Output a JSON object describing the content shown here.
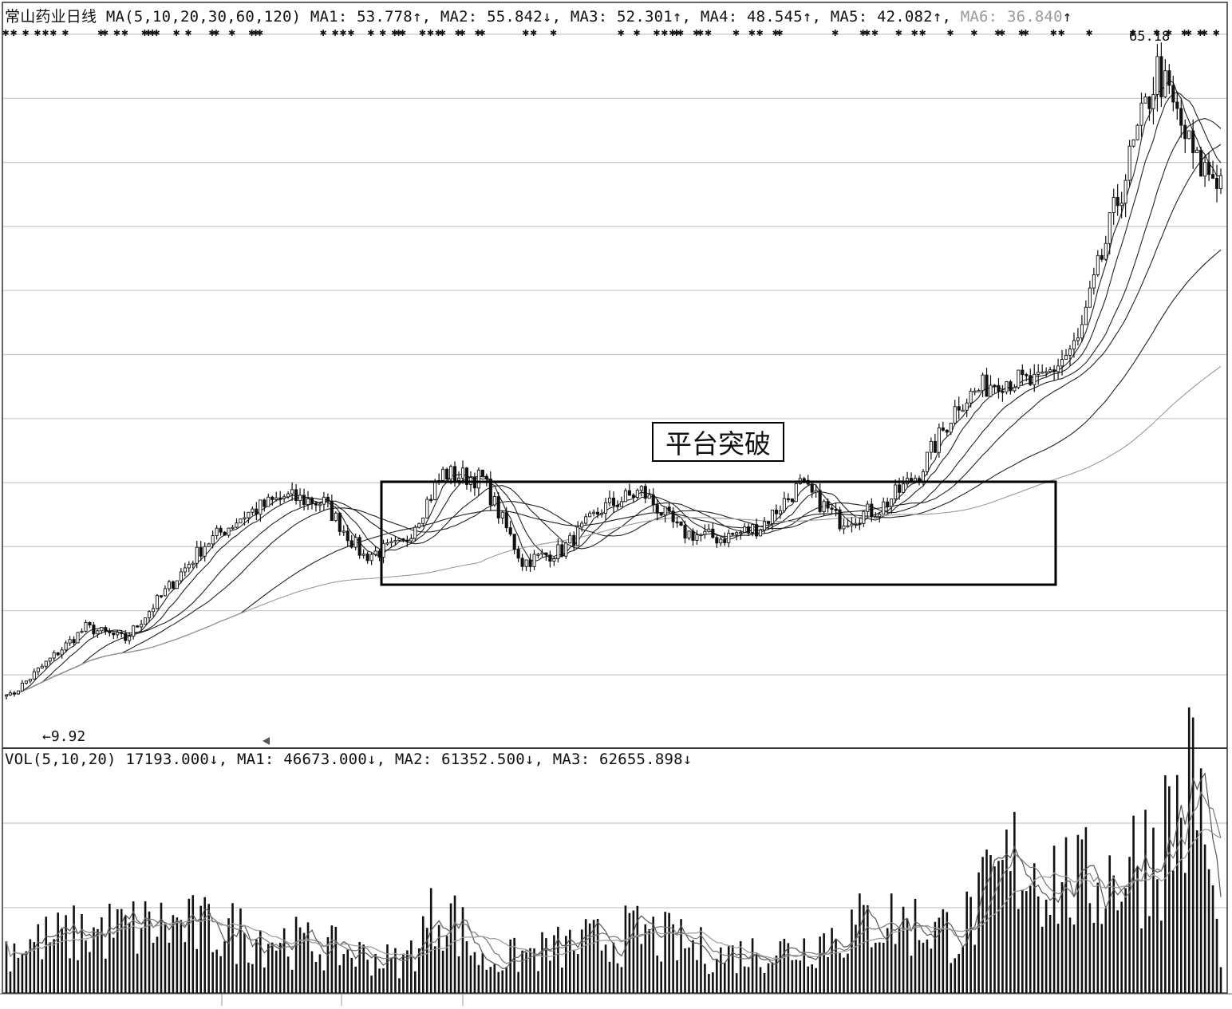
{
  "price_panel": {
    "stock_title": "常山药业日线",
    "ma_label": "MA(5,10,20,30,60,120)",
    "ma_values": [
      {
        "label": "MA1:",
        "value": "53.778",
        "arrow": "↑"
      },
      {
        "label": "MA2:",
        "value": "55.842",
        "arrow": "↓"
      },
      {
        "label": "MA3:",
        "value": "52.301",
        "arrow": "↑"
      },
      {
        "label": "MA4:",
        "value": "48.545",
        "arrow": "↑"
      },
      {
        "label": "MA5:",
        "value": "42.082",
        "arrow": "↑"
      },
      {
        "label": "MA6:",
        "value": "36.840",
        "arrow": "↑"
      }
    ],
    "low_label": "←9.92",
    "high_label": "65.18",
    "annotation": "平台突破"
  },
  "volume_panel": {
    "label": "VOL(5,10,20)",
    "current": "17193.000",
    "current_arrow": "↓",
    "ma_values": [
      {
        "label": "MA1:",
        "value": "46673.000",
        "arrow": "↓"
      },
      {
        "label": "MA2:",
        "value": "61352.500",
        "arrow": "↓"
      },
      {
        "label": "MA3:",
        "value": "62655.898",
        "arrow": "↓"
      }
    ]
  },
  "colors": {
    "candle": "#111111",
    "grid": "#c8c8c8",
    "ma_dark": "#222222",
    "ma_light": "#9a9a9a"
  },
  "chart_data": [
    {
      "type": "line",
      "name": "常山药业日线",
      "x_unit": "trading day index",
      "x": [
        0,
        10,
        20,
        30,
        40,
        50,
        60,
        70,
        80,
        90,
        100,
        110,
        120,
        130,
        140,
        150,
        160,
        170,
        180,
        190,
        200,
        210,
        220,
        230,
        240,
        250,
        260,
        270,
        280,
        290,
        300,
        306
      ],
      "close_approx": [
        9.9,
        13.0,
        16.0,
        15.0,
        19.0,
        23.0,
        25.5,
        27.0,
        26.5,
        22.0,
        23.0,
        29.0,
        28.5,
        21.5,
        22.5,
        26.0,
        27.5,
        24.0,
        23.5,
        24.5,
        28.0,
        25.0,
        26.0,
        29.0,
        35.0,
        37.0,
        36.5,
        40.0,
        52.0,
        63.0,
        55.0,
        53.8
      ],
      "ylim": [
        8.5,
        66
      ],
      "low": 9.92,
      "high": 65.18,
      "annotation": "平台突破",
      "moving_averages": [
        "MA1",
        "MA2",
        "MA3",
        "MA4",
        "MA5",
        "MA6"
      ],
      "grid": true
    },
    {
      "type": "bar",
      "name": "VOL(5,10,20)",
      "x_unit": "trading day index",
      "x": [
        0,
        20,
        40,
        60,
        80,
        100,
        110,
        120,
        140,
        160,
        180,
        200,
        220,
        240,
        255,
        270,
        280,
        290,
        300,
        306
      ],
      "volume_approx": [
        30000,
        40000,
        45000,
        40000,
        30000,
        20000,
        60000,
        20000,
        30000,
        40000,
        25000,
        30000,
        50000,
        40000,
        90000,
        70000,
        80000,
        100000,
        140000,
        17193
      ],
      "ma_series": [
        "MA1",
        "MA2",
        "MA3"
      ],
      "grid": true
    }
  ]
}
